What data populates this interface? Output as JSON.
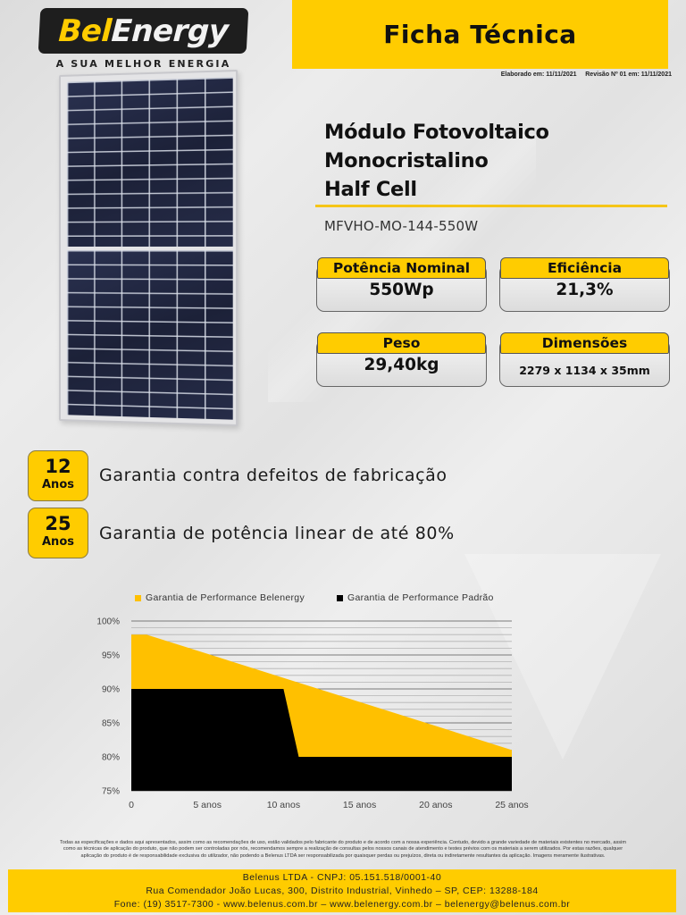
{
  "brand": {
    "logo_part1": "Bel",
    "logo_part2": "Energy",
    "tagline": "A SUA MELHOR ENERGIA",
    "primary_color": "#ffcc00",
    "dark_color": "#1e1e1e"
  },
  "header": {
    "title": "Ficha Técnica",
    "revision_line": "Elaborado em: 11/11/2021     Revisão Nº 01 em: 11/11/2021"
  },
  "product": {
    "title_lines": [
      "Módulo Fotovoltaico",
      "Monocristalino",
      "Half Cell"
    ],
    "model": "MFVHO-MO-144-550W",
    "image": "solar-panel-image"
  },
  "specs": [
    {
      "label": "Potência Nominal",
      "value": "550Wp"
    },
    {
      "label": "Eficiência",
      "value": "21,3%"
    },
    {
      "label": "Peso",
      "value": "29,40kg"
    },
    {
      "label": "Dimensões",
      "value": "2279 x 1134 x 35mm"
    }
  ],
  "warranties": [
    {
      "years": "12",
      "unit": "Anos",
      "text": "Garantia contra defeitos de fabricação"
    },
    {
      "years": "25",
      "unit": "Anos",
      "text": "Garantia de potência linear de até 80%"
    }
  ],
  "chart_data": {
    "type": "area",
    "title": "",
    "xlabel": "",
    "ylabel": "",
    "x": [
      0,
      1,
      10,
      11,
      25
    ],
    "x_tick_labels": [
      "0",
      "5 anos",
      "10 anos",
      "15 anos",
      "20 anos",
      "25 anos"
    ],
    "x_ticks": [
      0,
      5,
      10,
      15,
      20,
      25
    ],
    "y_tick_labels": [
      "100%",
      "95%",
      "90%",
      "85%",
      "80%",
      "75%"
    ],
    "y_ticks": [
      100,
      95,
      90,
      85,
      80,
      75
    ],
    "xlim": [
      0,
      25
    ],
    "ylim": [
      75,
      100
    ],
    "grid": true,
    "legend_position": "top",
    "series": [
      {
        "name": "Garantia de Performance Belenergy",
        "color": "#ffc000",
        "points": [
          [
            0,
            98
          ],
          [
            1,
            98
          ],
          [
            5,
            95.7
          ],
          [
            10,
            92.9
          ],
          [
            15,
            89.6
          ],
          [
            20,
            84.4
          ],
          [
            25,
            81
          ]
        ]
      },
      {
        "name": "Garantia de Performance Padrão",
        "color": "#000000",
        "points": [
          [
            0,
            90
          ],
          [
            10,
            90
          ],
          [
            11,
            80
          ],
          [
            25,
            80
          ]
        ]
      }
    ]
  },
  "disclaimer": [
    "Todas as especificações e dados aqui apresentados, assim como as recomendações de uso, estão validados pelo fabricante do produto e de acordo com a nossa experiência. Contudo, devido a grande variedade de materiais existentes no mercado, assim",
    "como as técnicas de aplicação do produto, que não podem ser controladas por nós, recomendamos sempre a realização de consultas pelos nossos canais de atendimento e testes prévios com os materiais a serem utilizados. Por estas razões, qualquer",
    "aplicação do produto é de responsabilidade exclusiva do utilizador, não podendo a Belenus LTDA ser responsabilizada por quaisquer perdas ou prejuízos, direta ou indiretamente resultantes da aplicação. Imagens meramente ilustrativas."
  ],
  "footer": {
    "line1": "Belenus LTDA - CNPJ: 05.151.518/0001-40",
    "line2": "Rua Comendador João Lucas, 300, Distrito Industrial, Vinhedo – SP, CEP: 13288-184",
    "line3": "Fone: (19) 3517-7300 - www.belenus.com.br – www.belenergy.com.br – belenergy@belenus.com.br"
  }
}
